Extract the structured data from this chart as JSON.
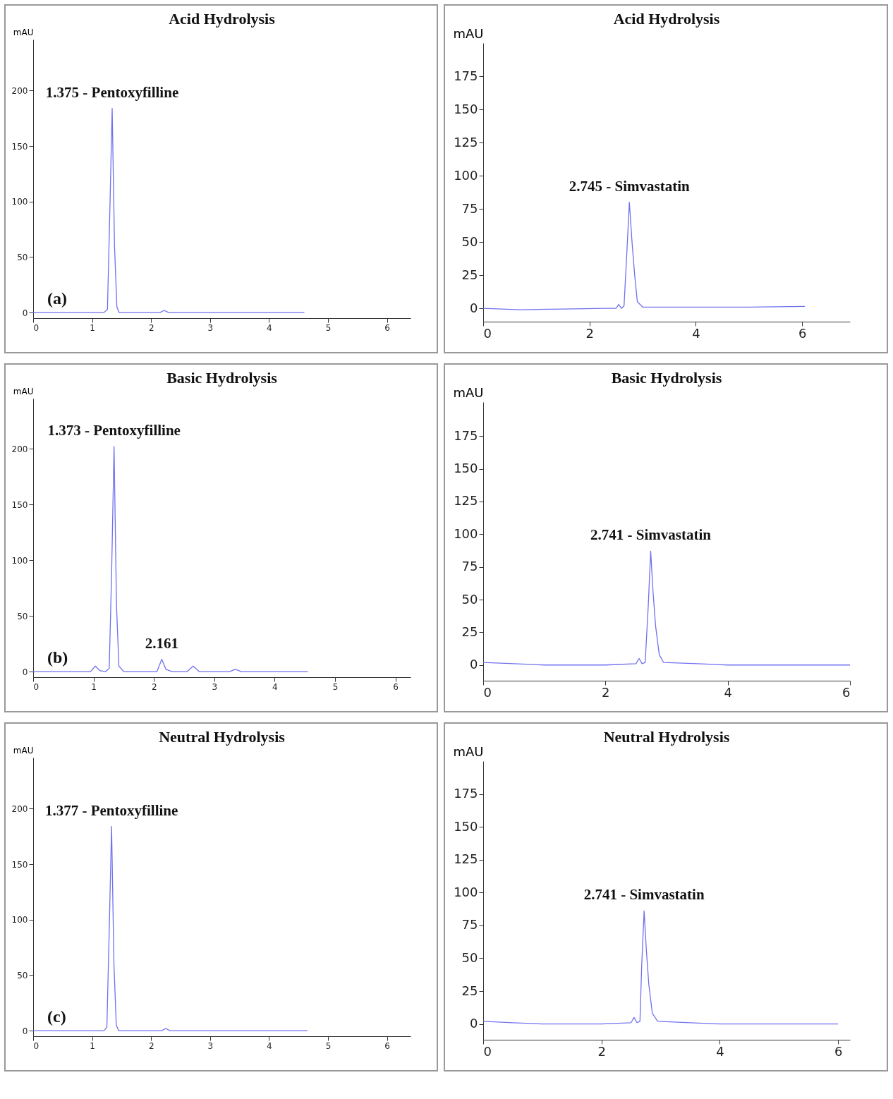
{
  "chart_data": [
    {
      "type": "line",
      "title": "Acid Hydrolysis",
      "ylabel": "mAU",
      "xlim": [
        0,
        6.4
      ],
      "ylim": [
        -5,
        246
      ],
      "xticks": [
        0,
        1,
        2,
        3,
        4,
        5,
        6
      ],
      "yticks": [
        0,
        50,
        100,
        150,
        200
      ],
      "series": [
        {
          "color": "#7070f0",
          "x": [
            0,
            1.2,
            1.26,
            1.3,
            1.34,
            1.38,
            1.42,
            1.46,
            2.15,
            2.22,
            2.3,
            4.6
          ],
          "values": [
            0,
            0,
            3,
            90,
            184,
            60,
            5,
            0,
            0,
            2,
            0,
            0
          ]
        }
      ],
      "annotations": [
        {
          "text": "1.375 - Pentoxyfilline",
          "x": 1.34,
          "y": 184
        },
        "(a)"
      ]
    },
    {
      "type": "line",
      "title": "Acid Hydrolysis",
      "ylabel": "mAU",
      "xlim": [
        0,
        6.9
      ],
      "ylim": [
        -10,
        200
      ],
      "xticks": [
        0,
        2,
        4,
        6
      ],
      "yticks": [
        0,
        25,
        50,
        75,
        100,
        125,
        150,
        175
      ],
      "series": [
        {
          "color": "#7070f0",
          "x": [
            0,
            0.7,
            1.5,
            2.3,
            2.5,
            2.55,
            2.6,
            2.65,
            2.7,
            2.75,
            2.8,
            2.85,
            2.9,
            3.0,
            4,
            5,
            6.05
          ],
          "values": [
            0,
            -1,
            -0.5,
            0,
            0,
            3,
            0,
            2,
            40,
            80,
            50,
            25,
            5,
            1,
            1,
            1,
            1.5
          ]
        }
      ],
      "annotations": [
        {
          "text": "2.745 - Simvastatin",
          "x": 2.75,
          "y": 80
        }
      ]
    },
    {
      "type": "line",
      "title": "Basic Hydrolysis",
      "ylabel": "mAU",
      "xlim": [
        0,
        6.25
      ],
      "ylim": [
        -5,
        245
      ],
      "xticks": [
        0,
        1,
        2,
        3,
        4,
        5,
        6
      ],
      "yticks": [
        0,
        50,
        100,
        150,
        200
      ],
      "series": [
        {
          "color": "#7070f0",
          "x": [
            0,
            0.95,
            1.03,
            1.1,
            1.2,
            1.26,
            1.3,
            1.34,
            1.38,
            1.42,
            1.5,
            2.05,
            2.13,
            2.2,
            2.3,
            2.55,
            2.65,
            2.75,
            3.25,
            3.35,
            3.45,
            4.55
          ],
          "values": [
            0,
            0,
            5,
            1,
            0,
            3,
            90,
            202,
            60,
            5,
            0,
            0,
            11,
            2,
            0,
            0,
            5,
            0,
            0,
            2,
            0,
            0
          ]
        }
      ],
      "annotations": [
        {
          "text": "1.373 - Pentoxyfilline",
          "x": 1.34,
          "y": 202
        },
        {
          "text": "2.161",
          "x": 2.13,
          "y": 11
        },
        "(b)"
      ]
    },
    {
      "type": "line",
      "title": "Basic Hydrolysis",
      "ylabel": "mAU",
      "xlim": [
        0,
        6
      ],
      "ylim": [
        -12,
        201
      ],
      "xticks": [
        0,
        2,
        4,
        6
      ],
      "yticks": [
        0,
        25,
        50,
        75,
        100,
        125,
        150,
        175
      ],
      "series": [
        {
          "color": "#7070f0",
          "x": [
            0,
            0.5,
            1,
            2,
            2.5,
            2.55,
            2.6,
            2.65,
            2.7,
            2.74,
            2.78,
            2.82,
            2.88,
            2.95,
            3.5,
            4,
            5,
            6
          ],
          "values": [
            2,
            1,
            0,
            0,
            1,
            5,
            1,
            2,
            45,
            87,
            55,
            30,
            8,
            2,
            1,
            0,
            0,
            0
          ]
        }
      ],
      "annotations": [
        {
          "text": "2.741 - Simvastatin",
          "x": 2.74,
          "y": 87
        }
      ]
    },
    {
      "type": "line",
      "title": "Neutral Hydrolysis",
      "ylabel": "mAU",
      "xlim": [
        0,
        6.4
      ],
      "ylim": [
        -5,
        246
      ],
      "xticks": [
        0,
        1,
        2,
        3,
        4,
        5,
        6
      ],
      "yticks": [
        0,
        50,
        100,
        150,
        200
      ],
      "series": [
        {
          "color": "#7070f0",
          "x": [
            0,
            1.2,
            1.25,
            1.29,
            1.33,
            1.37,
            1.41,
            1.45,
            2.18,
            2.25,
            2.32,
            4.65
          ],
          "values": [
            0,
            0,
            3,
            90,
            184,
            60,
            5,
            0,
            0,
            2,
            0,
            0
          ]
        }
      ],
      "annotations": [
        {
          "text": "1.377 - Pentoxyfilline",
          "x": 1.33,
          "y": 184
        },
        "(c)"
      ]
    },
    {
      "type": "line",
      "title": "Neutral Hydrolysis",
      "ylabel": "mAU",
      "xlim": [
        0,
        6.2
      ],
      "ylim": [
        -12,
        200
      ],
      "xticks": [
        0,
        2,
        4,
        6
      ],
      "yticks": [
        0,
        25,
        50,
        75,
        100,
        125,
        150,
        175
      ],
      "series": [
        {
          "color": "#7070f0",
          "x": [
            0,
            0.5,
            1,
            2,
            2.5,
            2.55,
            2.6,
            2.65,
            2.68,
            2.72,
            2.76,
            2.8,
            2.86,
            2.95,
            3.5,
            4,
            5,
            6
          ],
          "values": [
            2,
            1,
            0,
            0,
            1,
            5,
            1,
            2,
            45,
            86,
            55,
            30,
            8,
            2,
            1,
            0,
            0,
            0
          ]
        }
      ],
      "annotations": [
        {
          "text": "2.741 - Simvastatin",
          "x": 2.72,
          "y": 86
        }
      ]
    }
  ]
}
